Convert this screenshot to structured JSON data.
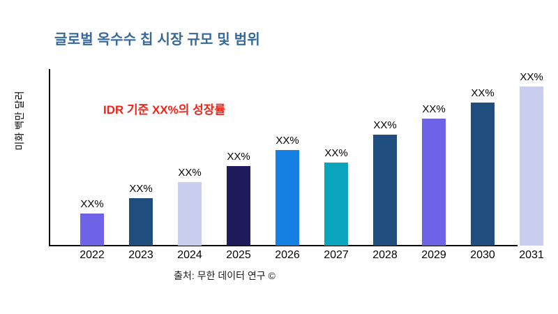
{
  "title": {
    "text": "글로벌 옥수수 칩 시장 규모 및 범위",
    "color": "#35689d"
  },
  "annotation": {
    "text": "IDR 기준 XX%의 성장률",
    "color": "#ee2418"
  },
  "source": {
    "text": "출처: 무한 데이터 연구 ©"
  },
  "chart_data": {
    "type": "bar",
    "title": "글로벌 옥수수 칩 시장 규모 및 범위",
    "xlabel": "",
    "ylabel": "미화 백만 달러",
    "categories": [
      "2022",
      "2023",
      "2024",
      "2025",
      "2026",
      "2027",
      "2028",
      "2029",
      "2030",
      "2031"
    ],
    "values": [
      18,
      27,
      36,
      45,
      54,
      47,
      63,
      72,
      81,
      90
    ],
    "values_note": "relative bar heights in % of plot area; actual figures masked on chart as XX%",
    "bar_labels": [
      "XX%",
      "XX%",
      "XX%",
      "XX%",
      "XX%",
      "XX%",
      "XX%",
      "XX%",
      "XX%",
      "XX%"
    ],
    "bar_colors": [
      "#6e62e7",
      "#1f4e7e",
      "#c9cdee",
      "#201b5a",
      "#1380e2",
      "#0aa4bd",
      "#1f4e7e",
      "#6e62e7",
      "#1f4e7e",
      "#c9cdee"
    ],
    "ylim": [
      0,
      100
    ],
    "grid": false,
    "legend": false,
    "annotation": "IDR 기준 XX%의 성장률"
  }
}
